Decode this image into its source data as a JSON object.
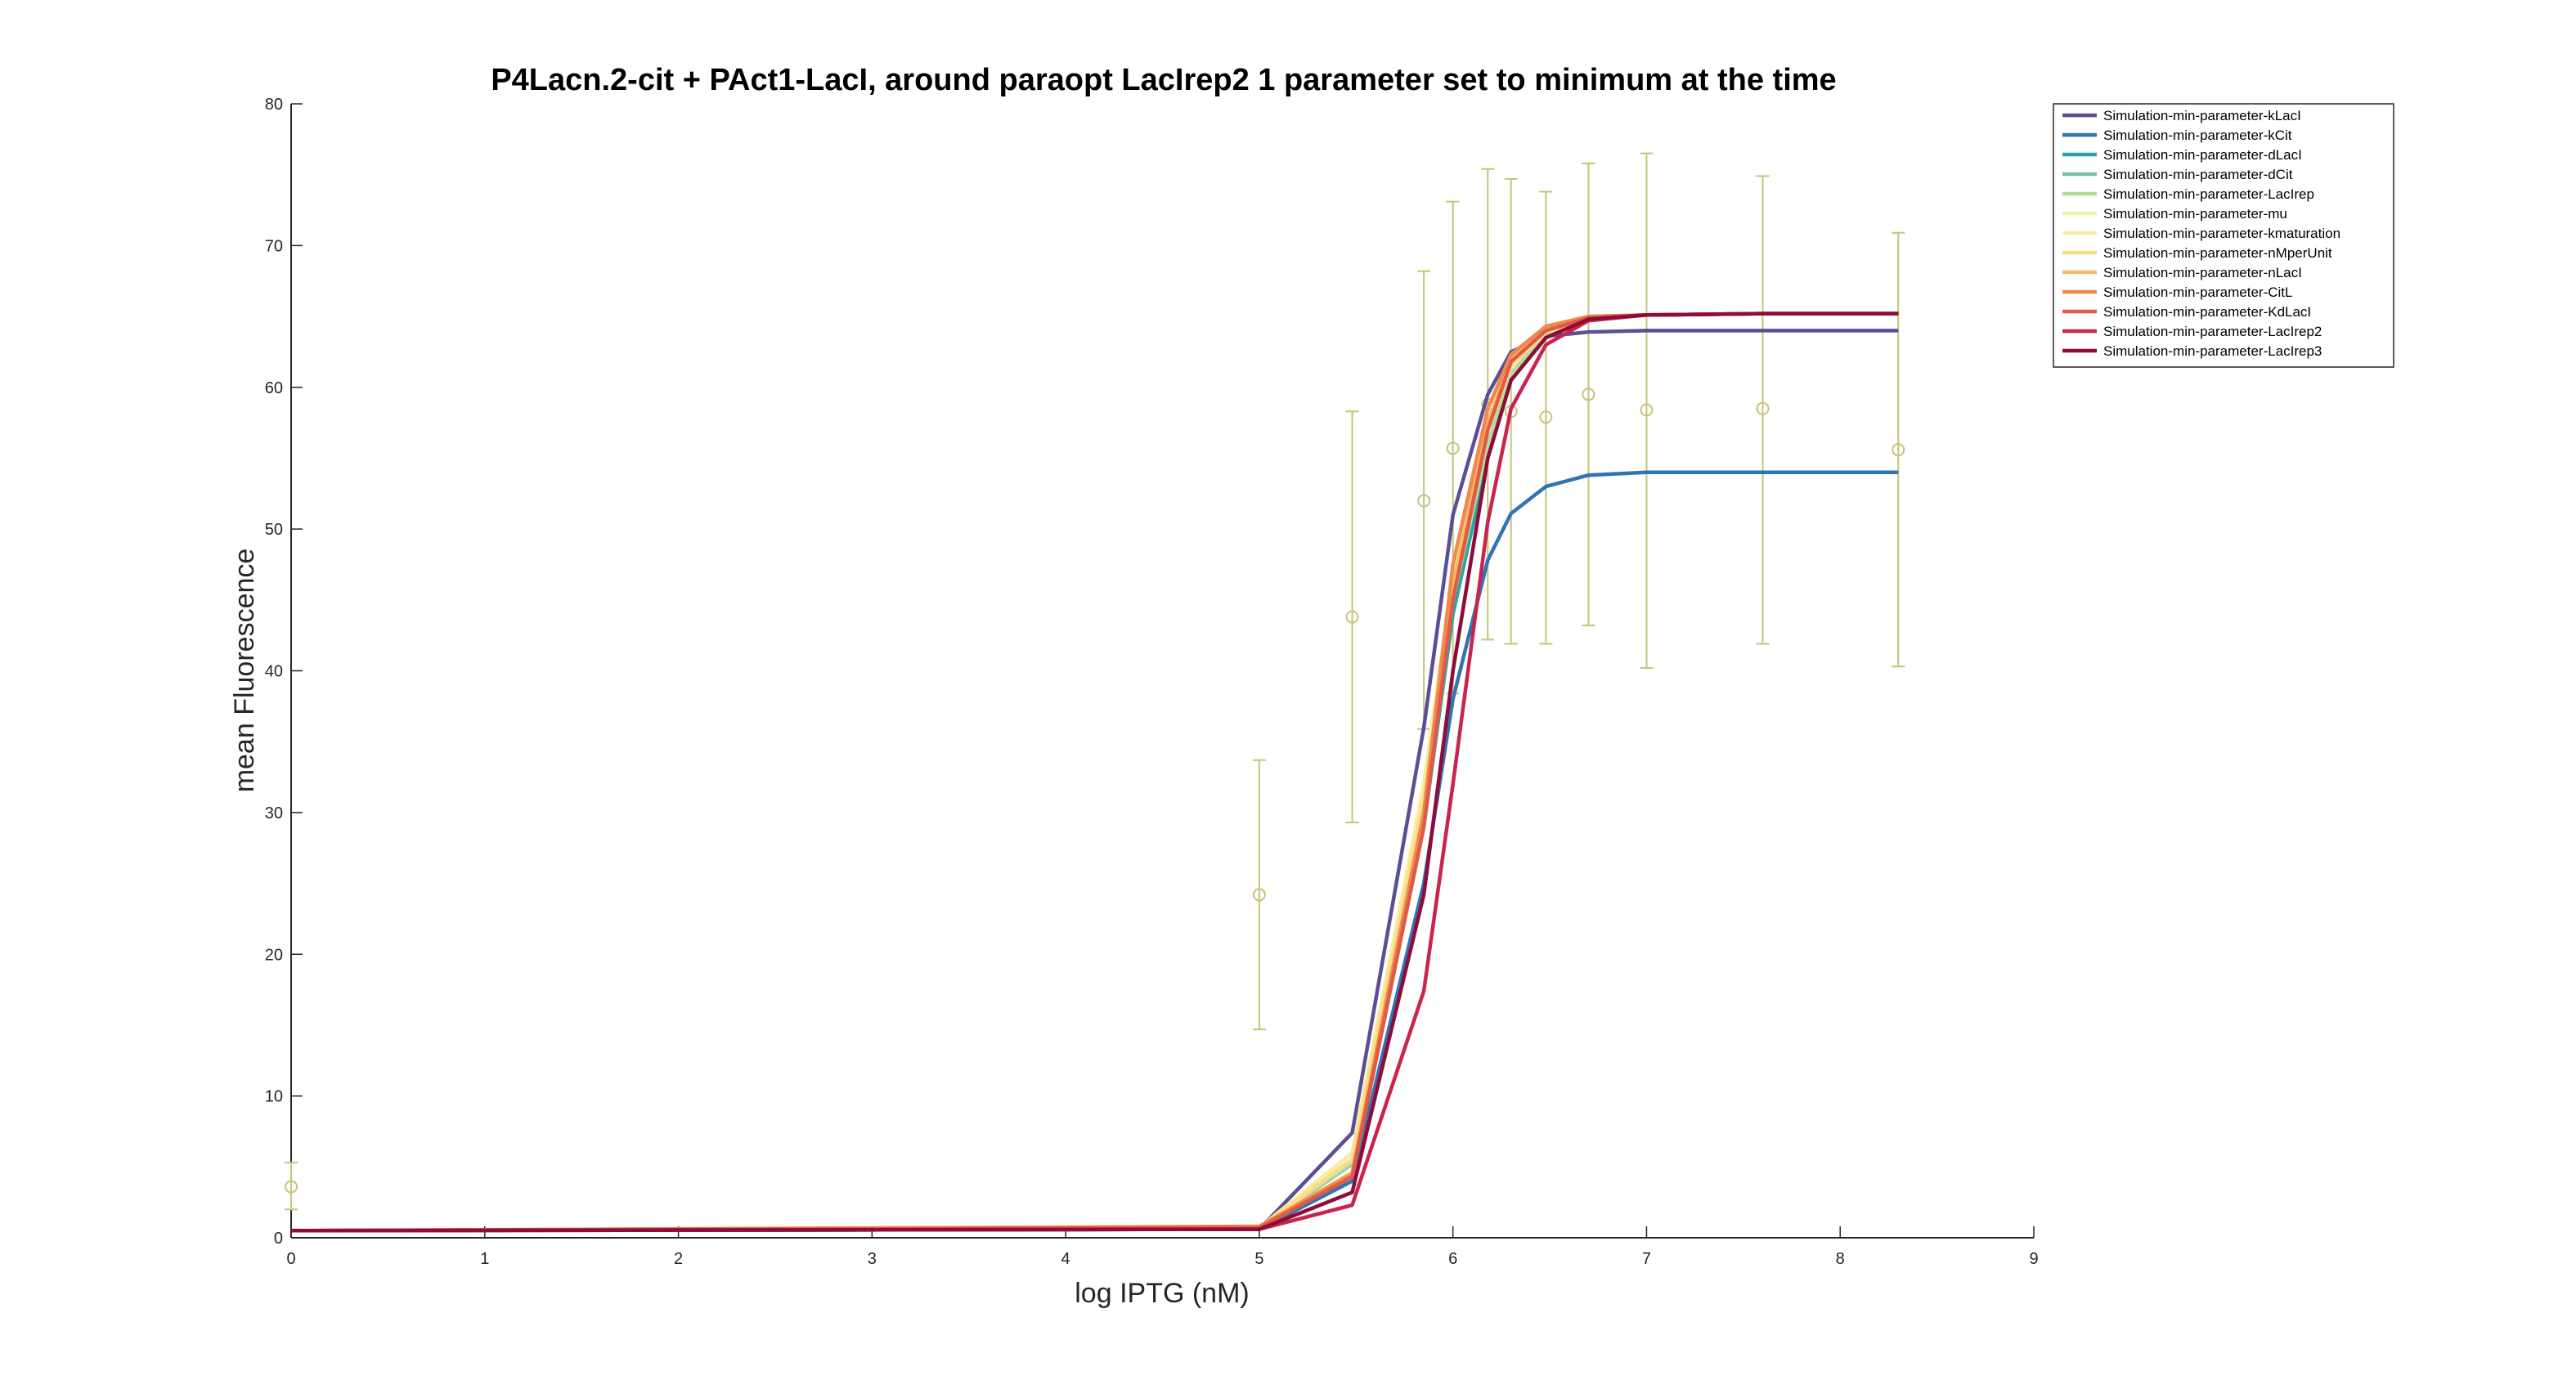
{
  "chart_data": {
    "type": "line",
    "title": "P4Lacn.2-cit + PAct1-LacI, around paraopt LacIrep2 1 parameter set to minimum at the time",
    "xlabel": "log IPTG (nM)",
    "ylabel": "mean Fluorescence",
    "xlim": [
      0,
      9
    ],
    "ylim": [
      0,
      80
    ],
    "xticks": [
      "0",
      "1",
      "2",
      "3",
      "4",
      "5",
      "6",
      "7",
      "8",
      "9"
    ],
    "yticks": [
      "0",
      "10",
      "20",
      "30",
      "40",
      "50",
      "60",
      "70",
      "80"
    ],
    "grid": false,
    "legend_position": "outside-top-right",
    "x": [
      0,
      5,
      5.48,
      5.85,
      6,
      6.18,
      6.3,
      6.48,
      6.7,
      7,
      7.6,
      8.3
    ],
    "series": [
      {
        "name": "Simulation-min-parameter-kLacI",
        "color": "#5b4e96",
        "values": [
          0.5,
          0.6,
          7.4,
          36.0,
          51.0,
          59.5,
          62.5,
          63.6,
          63.9,
          64.0,
          64.0,
          64.0
        ]
      },
      {
        "name": "Simulation-min-parameter-kCit",
        "color": "#2f74b5",
        "values": [
          0.5,
          0.6,
          4.0,
          25.0,
          38.0,
          47.8,
          51.1,
          53.0,
          53.8,
          54.0,
          54.0,
          54.0
        ]
      },
      {
        "name": "Simulation-min-parameter-dLacI",
        "color": "#2aa3a3",
        "values": [
          0.5,
          0.6,
          4.5,
          29.0,
          44.0,
          55.0,
          60.5,
          63.5,
          64.8,
          65.1,
          65.2,
          65.2
        ]
      },
      {
        "name": "Simulation-min-parameter-dCit",
        "color": "#74c4a4",
        "values": [
          0.5,
          0.7,
          5.2,
          30.0,
          45.0,
          56.0,
          61.0,
          63.7,
          64.8,
          65.1,
          65.2,
          65.2
        ]
      },
      {
        "name": "Simulation-min-parameter-LacIrep",
        "color": "#b3dc9a",
        "values": [
          0.5,
          0.7,
          5.3,
          30.0,
          45.0,
          56.0,
          61.0,
          63.7,
          64.8,
          65.1,
          65.2,
          65.2
        ]
      },
      {
        "name": "Simulation-min-parameter-mu",
        "color": "#eef2a6",
        "values": [
          0.5,
          0.7,
          5.6,
          31.0,
          46.0,
          57.0,
          61.5,
          63.9,
          64.9,
          65.1,
          65.2,
          65.2
        ]
      },
      {
        "name": "Simulation-min-parameter-kmaturation",
        "color": "#fbeda0",
        "values": [
          0.5,
          0.7,
          6.0,
          32.0,
          47.0,
          57.5,
          61.8,
          64.0,
          64.9,
          65.1,
          65.2,
          65.2
        ]
      },
      {
        "name": "Simulation-min-parameter-nMperUnit",
        "color": "#fcdc8c",
        "values": [
          0.5,
          0.7,
          5.5,
          31.0,
          46.0,
          57.0,
          61.5,
          63.9,
          64.9,
          65.1,
          65.2,
          65.2
        ]
      },
      {
        "name": "Simulation-min-parameter-nLacI",
        "color": "#fbb868",
        "values": [
          0.5,
          0.8,
          4.6,
          30.0,
          46.0,
          57.5,
          62.0,
          64.2,
          65.0,
          65.1,
          65.2,
          65.2
        ]
      },
      {
        "name": "Simulation-min-parameter-CitL",
        "color": "#f0894d",
        "values": [
          0.5,
          0.8,
          4.5,
          30.0,
          47.5,
          58.5,
          62.3,
          64.3,
          65.0,
          65.1,
          65.2,
          65.2
        ]
      },
      {
        "name": "Simulation-min-parameter-KdLacI",
        "color": "#e05a48",
        "values": [
          0.5,
          0.7,
          4.3,
          29.0,
          45.0,
          57.0,
          61.8,
          64.0,
          64.9,
          65.1,
          65.2,
          65.2
        ]
      },
      {
        "name": "Simulation-min-parameter-LacIrep2",
        "color": "#c9244e",
        "values": [
          0.5,
          0.6,
          2.3,
          17.4,
          32.0,
          50.5,
          58.5,
          63.0,
          64.7,
          65.1,
          65.2,
          65.2
        ]
      },
      {
        "name": "Simulation-min-parameter-LacIrep3",
        "color": "#8e0b3a",
        "values": [
          0.5,
          0.6,
          3.2,
          24.2,
          40.0,
          55.0,
          60.5,
          63.5,
          64.8,
          65.1,
          65.2,
          65.2
        ]
      }
    ],
    "experimental": {
      "color": "#c5c478",
      "points": [
        {
          "x": 0,
          "y": 3.6,
          "low": 2.0,
          "high": 5.3
        },
        {
          "x": 5,
          "y": 24.2,
          "low": 14.7,
          "high": 33.7
        },
        {
          "x": 5.48,
          "y": 43.8,
          "low": 29.3,
          "high": 58.3
        },
        {
          "x": 5.85,
          "y": 52.0,
          "low": 35.9,
          "high": 68.2
        },
        {
          "x": 6,
          "y": 55.7,
          "low": 38.4,
          "high": 73.1
        },
        {
          "x": 6.18,
          "y": 58.8,
          "low": 42.2,
          "high": 75.4
        },
        {
          "x": 6.3,
          "y": 58.3,
          "low": 41.9,
          "high": 74.7
        },
        {
          "x": 6.48,
          "y": 57.9,
          "low": 41.9,
          "high": 73.8
        },
        {
          "x": 6.7,
          "y": 59.5,
          "low": 43.2,
          "high": 75.8
        },
        {
          "x": 7,
          "y": 58.4,
          "low": 40.2,
          "high": 76.5
        },
        {
          "x": 7.6,
          "y": 58.5,
          "low": 41.9,
          "high": 74.9
        },
        {
          "x": 8.3,
          "y": 55.6,
          "low": 40.3,
          "high": 70.9
        }
      ]
    }
  }
}
